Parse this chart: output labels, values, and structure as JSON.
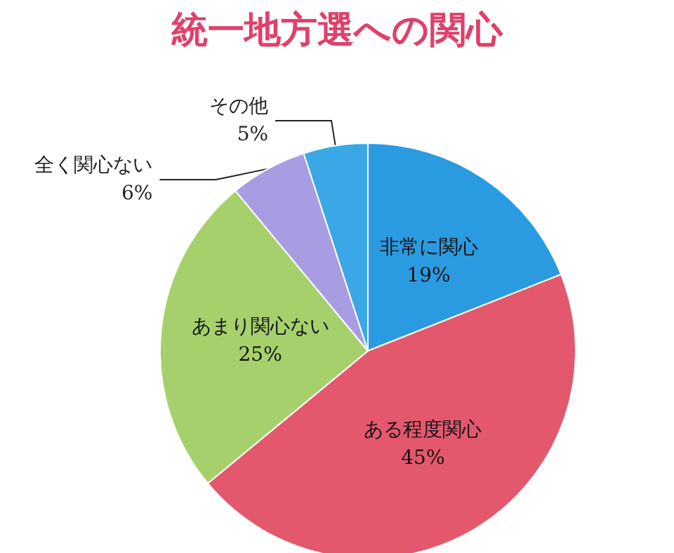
{
  "chart_data": {
    "type": "pie",
    "title": "統一地方選への関心",
    "categories": [
      "非常に関心",
      "ある程度関心",
      "あまり関心ない",
      "全く関心ない",
      "その他"
    ],
    "values": [
      19,
      45,
      25,
      6,
      5
    ],
    "value_labels": [
      "19%",
      "45%",
      "25%",
      "6%",
      "5%"
    ],
    "colors": [
      "#2a9be0",
      "#e4586e",
      "#a6d06c",
      "#a89ce2",
      "#3aa8e6"
    ],
    "legend": false
  }
}
